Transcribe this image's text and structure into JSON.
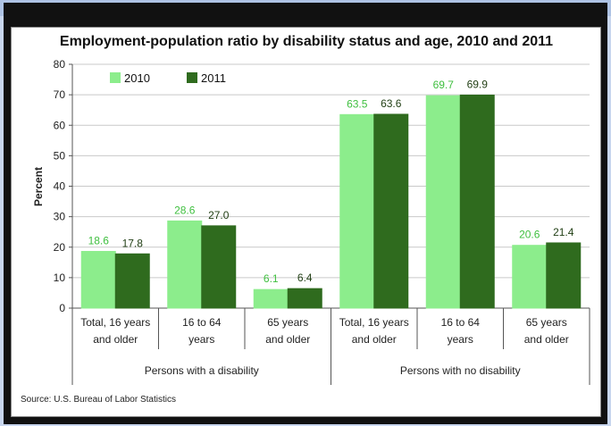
{
  "chart_data": {
    "type": "bar",
    "title": "Employment-population ratio by disability status and age, 2010 and 2011",
    "ylabel": "Percent",
    "ylim": [
      0,
      80
    ],
    "yticks": [
      0,
      10,
      20,
      30,
      40,
      50,
      60,
      70,
      80
    ],
    "grid": true,
    "legend_position": "top-left",
    "categories": [
      [
        "Total, 16 years",
        "and older"
      ],
      [
        "16 to 64",
        "years"
      ],
      [
        "65 years",
        "and older"
      ],
      [
        "Total, 16 years",
        "and older"
      ],
      [
        "16 to 64",
        "years"
      ],
      [
        "65 years",
        "and older"
      ]
    ],
    "groups": [
      {
        "label": "Persons with a disability",
        "span": [
          0,
          2
        ]
      },
      {
        "label": "Persons with no disability",
        "span": [
          3,
          5
        ]
      }
    ],
    "series": [
      {
        "name": "2010",
        "color": "#8ced8c",
        "label_color": "#3fbf3f",
        "values": [
          18.6,
          28.6,
          6.1,
          63.5,
          69.7,
          20.6
        ],
        "labels": [
          "18.6",
          "28.6",
          "6.1",
          "63.5",
          "69.7",
          "20.6"
        ]
      },
      {
        "name": "2011",
        "color": "#2f6b1e",
        "label_color": "#1f3d12",
        "values": [
          17.8,
          27.0,
          6.4,
          63.6,
          69.9,
          21.4
        ],
        "labels": [
          "17.8",
          "27.0",
          "6.4",
          "63.6",
          "69.9",
          "21.4"
        ]
      }
    ],
    "source": "Source: U.S. Bureau of Labor Statistics"
  }
}
